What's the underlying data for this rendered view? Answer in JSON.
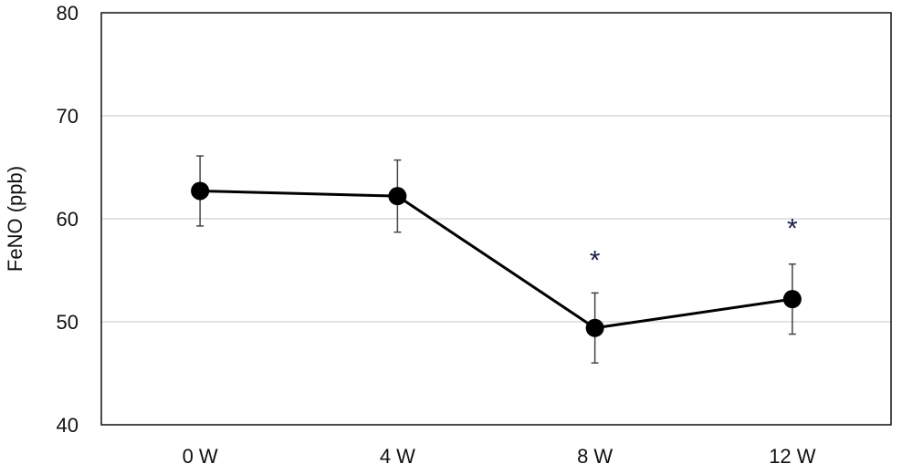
{
  "chart_data": {
    "type": "line",
    "title": "",
    "xlabel": "",
    "ylabel": "FeNO (ppb)",
    "categories": [
      "0 W",
      "4 W",
      "8 W",
      "12 W"
    ],
    "y_ticks": [
      "40",
      "50",
      "60",
      "70",
      "80"
    ],
    "ylim": [
      40,
      80
    ],
    "grid": true,
    "series": [
      {
        "values": [
          62.7,
          62.2,
          49.4,
          52.2
        ],
        "error": [
          3.4,
          3.5,
          3.4,
          3.4
        ],
        "color": "#000000"
      }
    ],
    "annotations": [
      {
        "category": "8 W",
        "text": "*",
        "y": 56.5
      },
      {
        "category": "12 W",
        "text": "*",
        "y": 59.6
      }
    ]
  }
}
